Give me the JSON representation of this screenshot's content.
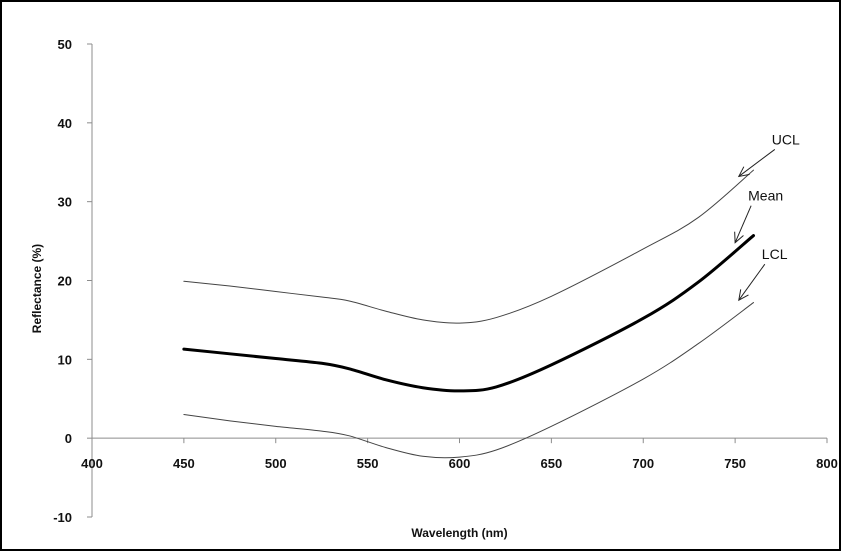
{
  "chart_data": {
    "type": "line",
    "xlabel": "Wavelength (nm)",
    "ylabel": "Reflectance (%)",
    "xlim": [
      400,
      800
    ],
    "ylim": [
      -10,
      50
    ],
    "xticks": [
      400,
      450,
      500,
      550,
      600,
      650,
      700,
      750,
      800
    ],
    "yticks": [
      -10,
      0,
      10,
      20,
      30,
      40,
      50
    ],
    "legend": "none",
    "grid": false,
    "series": [
      {
        "name": "UCL",
        "style": "thin",
        "x": [
          450,
          475,
          500,
          525,
          540,
          560,
          580,
          600,
          620,
          650,
          700,
          730,
          760
        ],
        "y": [
          19.9,
          19.3,
          18.6,
          17.9,
          17.4,
          16.1,
          15.0,
          14.6,
          15.3,
          18.0,
          24.0,
          28.0,
          34.0
        ]
      },
      {
        "name": "Mean",
        "style": "bold",
        "x": [
          450,
          475,
          500,
          525,
          540,
          560,
          580,
          600,
          620,
          650,
          700,
          730,
          760
        ],
        "y": [
          11.3,
          10.7,
          10.1,
          9.5,
          8.8,
          7.4,
          6.4,
          6.0,
          6.5,
          9.3,
          15.2,
          19.8,
          25.7
        ]
      },
      {
        "name": "LCL",
        "style": "thin",
        "x": [
          450,
          475,
          500,
          525,
          540,
          560,
          580,
          600,
          620,
          650,
          700,
          730,
          760
        ],
        "y": [
          3.0,
          2.2,
          1.5,
          0.9,
          0.3,
          -1.2,
          -2.3,
          -2.4,
          -1.5,
          1.5,
          7.5,
          12.0,
          17.2
        ]
      }
    ],
    "annotations": [
      {
        "label": "UCL",
        "points_to": [
          752,
          33.2
        ]
      },
      {
        "label": "Mean",
        "points_to": [
          750,
          24.8
        ]
      },
      {
        "label": "LCL",
        "points_to": [
          752,
          17.5
        ]
      }
    ]
  }
}
